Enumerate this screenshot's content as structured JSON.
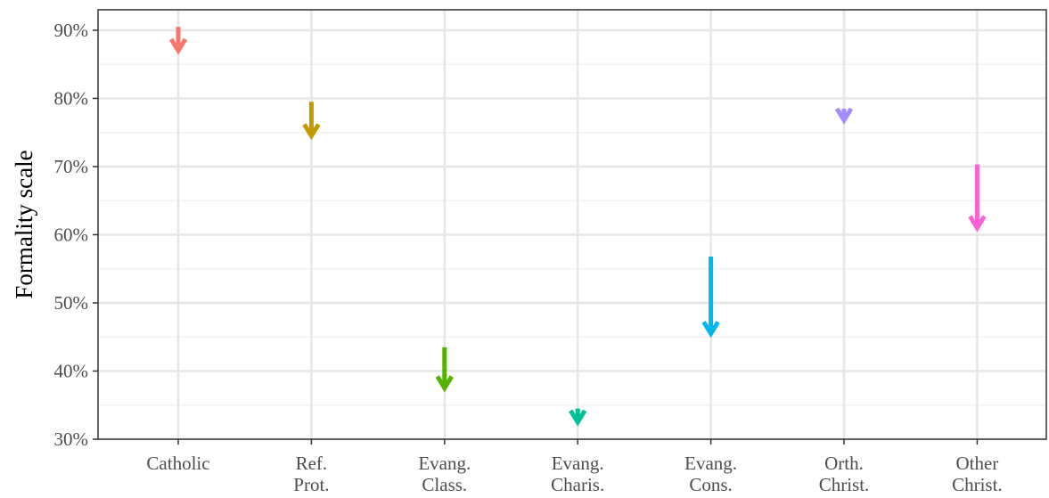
{
  "chart_data": {
    "type": "arrow",
    "title": "",
    "xlabel": "",
    "ylabel": "Formality scale",
    "ylim": [
      0.3,
      0.93
    ],
    "y_ticks": [
      0.3,
      0.4,
      0.5,
      0.6,
      0.7,
      0.8,
      0.9
    ],
    "y_tick_labels": [
      "30%",
      "40%",
      "50%",
      "60%",
      "70%",
      "80%",
      "90%"
    ],
    "grid": true,
    "categories": [
      [
        "Catholic"
      ],
      [
        "Ref.",
        "Prot."
      ],
      [
        "Evang.",
        "Class."
      ],
      [
        "Evang.",
        "Charis."
      ],
      [
        "Evang.",
        "Cons."
      ],
      [
        "Orth.",
        "Christ."
      ],
      [
        "Other",
        "Christ."
      ]
    ],
    "arrows": [
      {
        "from": 0.905,
        "to": 0.87,
        "color": "#F8766D"
      },
      {
        "from": 0.795,
        "to": 0.745,
        "color": "#C49A00"
      },
      {
        "from": 0.435,
        "to": 0.375,
        "color": "#53B400"
      },
      {
        "from": 0.345,
        "to": 0.325,
        "color": "#00C094"
      },
      {
        "from": 0.568,
        "to": 0.455,
        "color": "#00B6EB"
      },
      {
        "from": 0.785,
        "to": 0.768,
        "color": "#A58AFF"
      },
      {
        "from": 0.703,
        "to": 0.61,
        "color": "#FB61D7"
      }
    ]
  }
}
